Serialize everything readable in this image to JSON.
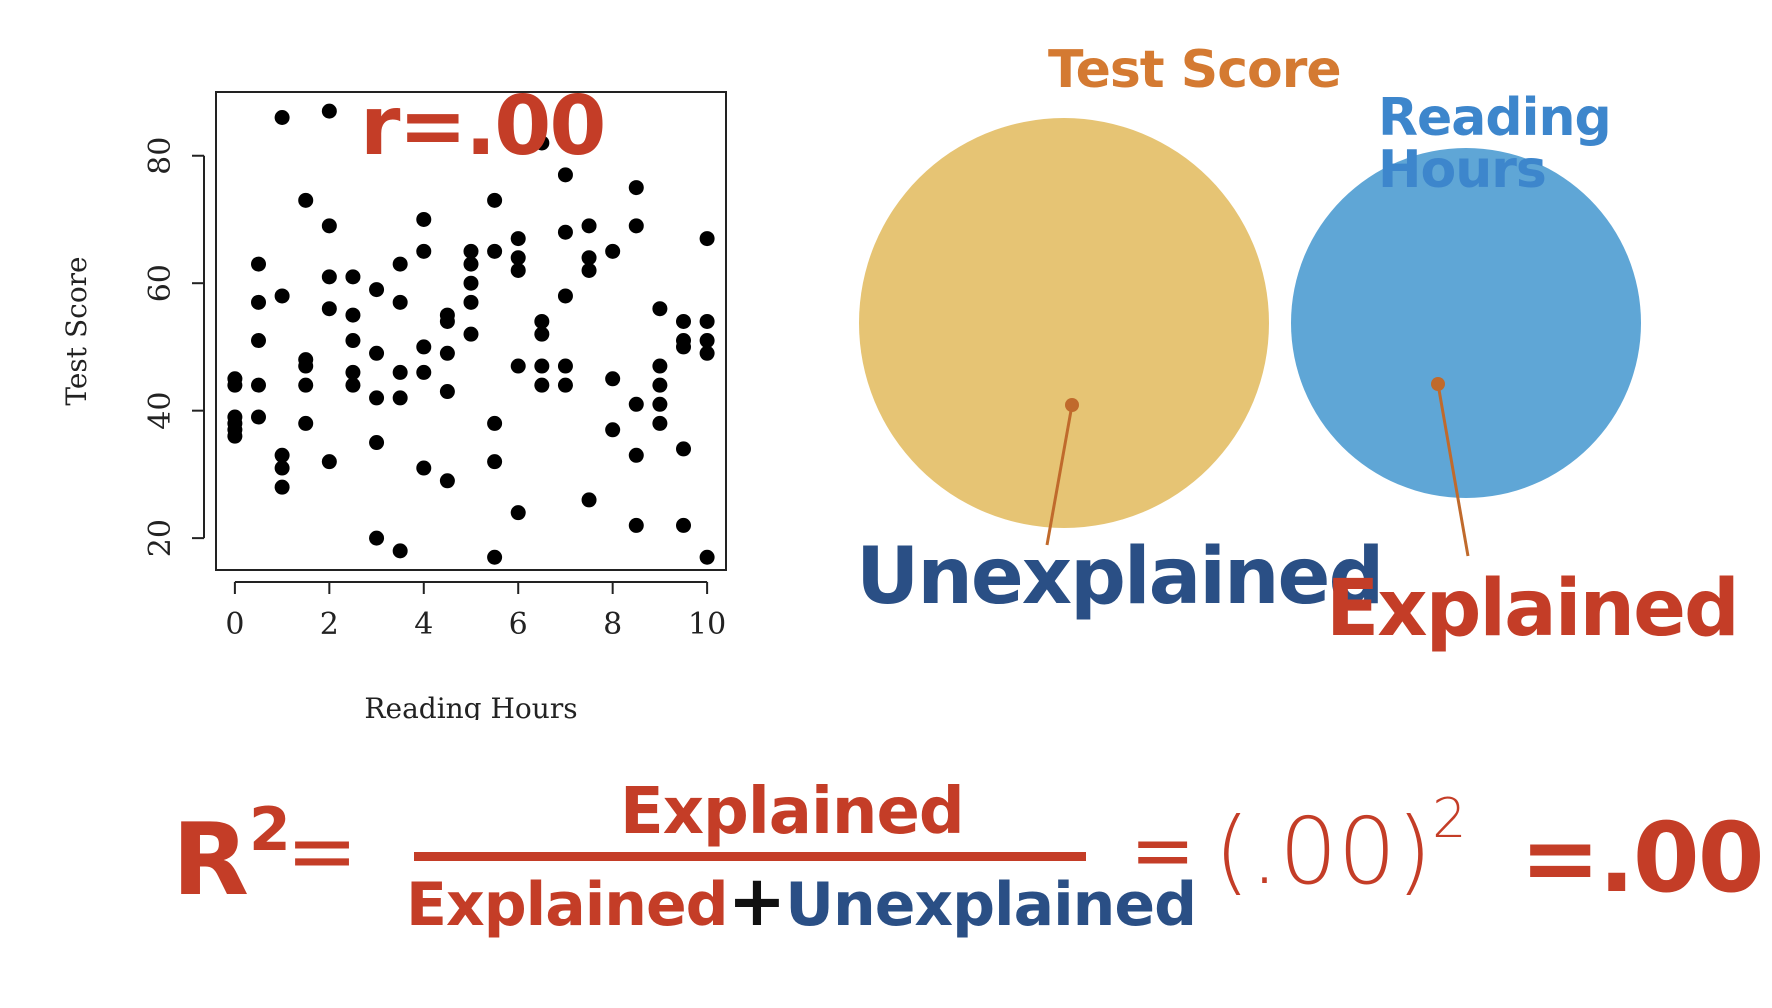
{
  "chart_data": {
    "type": "scatter",
    "xlabel": "Reading Hours",
    "ylabel": "Test Score",
    "xlim": [
      -0.4,
      10.4
    ],
    "ylim": [
      15,
      90
    ],
    "xticks": [
      0,
      2,
      4,
      6,
      8,
      10
    ],
    "yticks": [
      20,
      40,
      60,
      80
    ],
    "grid": false,
    "annotation": "r=.00",
    "points": [
      [
        0,
        45
      ],
      [
        0,
        44
      ],
      [
        0,
        39
      ],
      [
        0,
        38
      ],
      [
        0,
        37
      ],
      [
        0,
        36
      ],
      [
        0.5,
        63
      ],
      [
        0.5,
        57
      ],
      [
        0.5,
        51
      ],
      [
        0.5,
        44
      ],
      [
        0.5,
        39
      ],
      [
        1,
        86
      ],
      [
        1,
        58
      ],
      [
        1,
        33
      ],
      [
        1,
        31
      ],
      [
        1,
        28
      ],
      [
        1.5,
        73
      ],
      [
        1.5,
        48
      ],
      [
        1.5,
        47
      ],
      [
        1.5,
        44
      ],
      [
        1.5,
        38
      ],
      [
        2,
        87
      ],
      [
        2,
        69
      ],
      [
        2,
        61
      ],
      [
        2,
        56
      ],
      [
        2,
        32
      ],
      [
        2.5,
        61
      ],
      [
        2.5,
        55
      ],
      [
        2.5,
        51
      ],
      [
        2.5,
        46
      ],
      [
        2.5,
        44
      ],
      [
        3,
        59
      ],
      [
        3,
        49
      ],
      [
        3,
        42
      ],
      [
        3,
        35
      ],
      [
        3,
        20
      ],
      [
        3.5,
        63
      ],
      [
        3.5,
        57
      ],
      [
        3.5,
        46
      ],
      [
        3.5,
        42
      ],
      [
        3.5,
        18
      ],
      [
        4,
        70
      ],
      [
        4,
        65
      ],
      [
        4,
        50
      ],
      [
        4,
        46
      ],
      [
        4,
        31
      ],
      [
        4.5,
        55
      ],
      [
        4.5,
        54
      ],
      [
        4.5,
        49
      ],
      [
        4.5,
        43
      ],
      [
        4.5,
        29
      ],
      [
        5,
        65
      ],
      [
        5,
        63
      ],
      [
        5,
        60
      ],
      [
        5,
        57
      ],
      [
        5,
        52
      ],
      [
        5.5,
        73
      ],
      [
        5.5,
        65
      ],
      [
        5.5,
        38
      ],
      [
        5.5,
        32
      ],
      [
        5.5,
        17
      ],
      [
        6,
        67
      ],
      [
        6,
        64
      ],
      [
        6,
        62
      ],
      [
        6,
        47
      ],
      [
        6,
        24
      ],
      [
        6.5,
        82
      ],
      [
        6.5,
        54
      ],
      [
        6.5,
        52
      ],
      [
        6.5,
        47
      ],
      [
        6.5,
        44
      ],
      [
        7,
        77
      ],
      [
        7,
        68
      ],
      [
        7,
        58
      ],
      [
        7,
        47
      ],
      [
        7,
        44
      ],
      [
        7.5,
        69
      ],
      [
        7.5,
        64
      ],
      [
        7.5,
        62
      ],
      [
        7.5,
        26
      ],
      [
        8,
        65
      ],
      [
        8,
        45
      ],
      [
        8,
        37
      ],
      [
        8.5,
        75
      ],
      [
        8.5,
        69
      ],
      [
        8.5,
        41
      ],
      [
        8.5,
        33
      ],
      [
        8.5,
        22
      ],
      [
        9,
        56
      ],
      [
        9,
        47
      ],
      [
        9,
        44
      ],
      [
        9,
        41
      ],
      [
        9,
        38
      ],
      [
        9.5,
        54
      ],
      [
        9.5,
        51
      ],
      [
        9.5,
        50
      ],
      [
        9.5,
        34
      ],
      [
        9.5,
        22
      ],
      [
        10,
        67
      ],
      [
        10,
        54
      ],
      [
        10,
        51
      ],
      [
        10,
        49
      ],
      [
        10,
        17
      ]
    ]
  },
  "venn": {
    "test_score_label": "Test Score",
    "reading_hours_label": "Reading Hours",
    "unexplained_label": "Unexplained",
    "explained_label": "Explained",
    "test_score_color": "#e6c474",
    "reading_hours_color": "#5fa6d6",
    "pointer_color": "#c06a2c"
  },
  "formula": {
    "r2_base": "R",
    "r2_exp": "2",
    "equals1": "=",
    "numerator": "Explained",
    "denominator_left": "Explained",
    "denominator_plus": "+",
    "denominator_right": "Unexplained",
    "equals2": "=",
    "paren_value": "(.00)",
    "paren_exp": "2",
    "result": "=.00"
  }
}
